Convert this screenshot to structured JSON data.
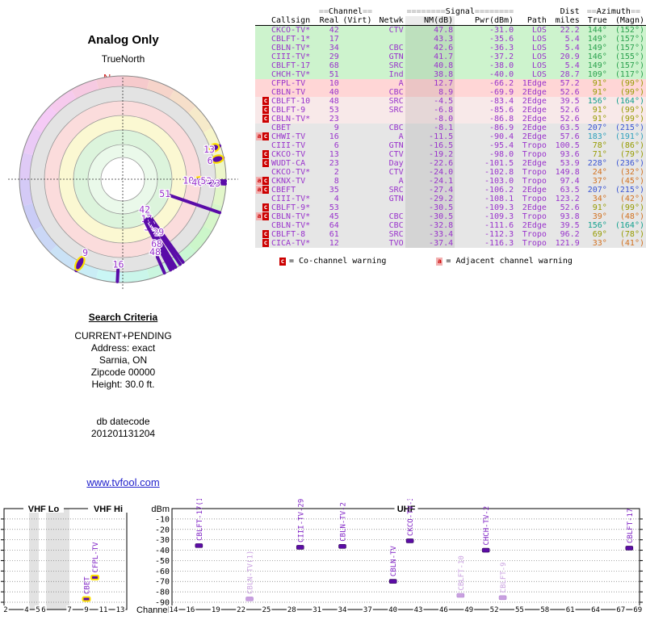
{
  "colors": {
    "purple_text": "#9933cc",
    "spoke_purple": "#5a0ca8",
    "marker_purple": "#5c0ca6",
    "marker_lavender": "#c9a0e0",
    "marker_label_purple": "#7d1fc4",
    "analog_outline_yellow": "#ffe000",
    "warning_red": "#cc0000",
    "warning_pink_bg": "#f2b0b0",
    "link_blue": "#2222cc",
    "north_red": "#cc2222",
    "row_green": "#cdf3cd",
    "row_pink": "#ffd6d6",
    "row_lightpink": "#f8e9e9",
    "row_gray": "#e6e6e6",
    "az_green": "#2aa14d",
    "az_olive": "#969b00",
    "az_teal": "#12a08e",
    "az_cyan": "#2fa0bc",
    "az_blue": "#3a55d4",
    "az_orange": "#d2711f"
  },
  "table": {
    "group_headers": {
      "channel_pre": "==",
      "channel": "Channel",
      "channel_post": "==",
      "signal_pre": "========",
      "signal": "Signal",
      "signal_post": "========",
      "dist": "Dist",
      "azimuth_pre": "==",
      "azimuth": "Azimuth",
      "azimuth_post": "=="
    },
    "columns": [
      "Callsign",
      "Real",
      "(Virt)",
      "Netwk",
      "NM(dB)",
      "Pwr(dBm)",
      "Path",
      "miles",
      "True",
      "(Magn)"
    ],
    "rows": [
      {
        "callsign": "CKCO-TV*",
        "real": 42,
        "virt": "",
        "netwk": "CTV",
        "nm": 47.8,
        "pwr": -31.0,
        "path": "LOS",
        "miles": 22.2,
        "az_true": 144,
        "az_magn": 152,
        "flags": "",
        "band": "green",
        "azc": "green"
      },
      {
        "callsign": "CBLFT-1*",
        "real": 17,
        "virt": "",
        "netwk": "",
        "nm": 43.3,
        "pwr": -35.6,
        "path": "LOS",
        "miles": 5.4,
        "az_true": 149,
        "az_magn": 157,
        "flags": "",
        "band": "green",
        "azc": "green"
      },
      {
        "callsign": "CBLN-TV*",
        "real": 34,
        "virt": "",
        "netwk": "CBC",
        "nm": 42.6,
        "pwr": -36.3,
        "path": "LOS",
        "miles": 5.4,
        "az_true": 149,
        "az_magn": 157,
        "flags": "",
        "band": "green",
        "azc": "green"
      },
      {
        "callsign": "CIII-TV*",
        "real": 29,
        "virt": "",
        "netwk": "GTN",
        "nm": 41.7,
        "pwr": -37.2,
        "path": "LOS",
        "miles": 20.9,
        "az_true": 146,
        "az_magn": 155,
        "flags": "",
        "band": "green",
        "azc": "green"
      },
      {
        "callsign": "CBLFT-17",
        "real": 68,
        "virt": "",
        "netwk": "SRC",
        "nm": 40.8,
        "pwr": -38.0,
        "path": "LOS",
        "miles": 5.4,
        "az_true": 149,
        "az_magn": 157,
        "flags": "",
        "band": "green",
        "azc": "green"
      },
      {
        "callsign": "CHCH-TV*",
        "real": 51,
        "virt": "",
        "netwk": "Ind",
        "nm": 38.8,
        "pwr": -40.0,
        "path": "LOS",
        "miles": 28.7,
        "az_true": 109,
        "az_magn": 117,
        "flags": "",
        "band": "green",
        "azc": "green"
      },
      {
        "callsign": "CFPL-TV",
        "real": 10,
        "virt": "",
        "netwk": "A",
        "nm": 12.7,
        "pwr": -66.2,
        "path": "1Edge",
        "miles": 57.2,
        "az_true": 91,
        "az_magn": 99,
        "flags": "",
        "band": "pink",
        "azc": "olive"
      },
      {
        "callsign": "CBLN-TV",
        "real": 40,
        "virt": "",
        "netwk": "CBC",
        "nm": 8.9,
        "pwr": -69.9,
        "path": "2Edge",
        "miles": 52.6,
        "az_true": 91,
        "az_magn": 99,
        "flags": "",
        "band": "pink",
        "azc": "olive"
      },
      {
        "callsign": "CBLFT-10",
        "real": 48,
        "virt": "",
        "netwk": "SRC",
        "nm": -4.5,
        "pwr": -83.4,
        "path": "2Edge",
        "miles": 39.5,
        "az_true": 156,
        "az_magn": 164,
        "flags": "c",
        "band": "lightpink",
        "azc": "teal"
      },
      {
        "callsign": "CBLFT-9",
        "real": 53,
        "virt": "",
        "netwk": "SRC",
        "nm": -6.8,
        "pwr": -85.6,
        "path": "2Edge",
        "miles": 52.6,
        "az_true": 91,
        "az_magn": 99,
        "flags": "c",
        "band": "lightpink",
        "azc": "olive"
      },
      {
        "callsign": "CBLN-TV*",
        "real": 23,
        "virt": "",
        "netwk": "",
        "nm": -8.0,
        "pwr": -86.8,
        "path": "2Edge",
        "miles": 52.6,
        "az_true": 91,
        "az_magn": 99,
        "flags": "c",
        "band": "lightpink",
        "azc": "olive"
      },
      {
        "callsign": "CBET",
        "real": 9,
        "virt": "",
        "netwk": "CBC",
        "nm": -8.1,
        "pwr": -86.9,
        "path": "2Edge",
        "miles": 63.5,
        "az_true": 207,
        "az_magn": 215,
        "flags": "",
        "band": "gray",
        "azc": "blue"
      },
      {
        "callsign": "CHWI-TV",
        "real": 16,
        "virt": "",
        "netwk": "A",
        "nm": -11.5,
        "pwr": -90.4,
        "path": "2Edge",
        "miles": 57.6,
        "az_true": 183,
        "az_magn": 191,
        "flags": "ac",
        "band": "gray",
        "azc": "cyan"
      },
      {
        "callsign": "CIII-TV",
        "real": 6,
        "virt": "",
        "netwk": "GTN",
        "nm": -16.5,
        "pwr": -95.4,
        "path": "Tropo",
        "miles": 100.5,
        "az_true": 78,
        "az_magn": 86,
        "flags": "",
        "band": "gray",
        "azc": "olive"
      },
      {
        "callsign": "CKCO-TV",
        "real": 13,
        "virt": "",
        "netwk": "CTV",
        "nm": -19.2,
        "pwr": -98.0,
        "path": "Tropo",
        "miles": 93.6,
        "az_true": 71,
        "az_magn": 79,
        "flags": "c",
        "band": "gray",
        "azc": "olive"
      },
      {
        "callsign": "WUDT-CA",
        "real": 23,
        "virt": "",
        "netwk": "Day",
        "nm": -22.6,
        "pwr": -101.5,
        "path": "2Edge",
        "miles": 53.9,
        "az_true": 228,
        "az_magn": 236,
        "flags": "c",
        "band": "gray",
        "azc": "blue"
      },
      {
        "callsign": "CKCO-TV*",
        "real": 2,
        "virt": "",
        "netwk": "CTV",
        "nm": -24.0,
        "pwr": -102.8,
        "path": "Tropo",
        "miles": 149.8,
        "az_true": 24,
        "az_magn": 32,
        "flags": "",
        "band": "gray",
        "azc": "orange"
      },
      {
        "callsign": "CKNX-TV",
        "real": 8,
        "virt": "",
        "netwk": "A",
        "nm": -24.1,
        "pwr": -103.0,
        "path": "Tropo",
        "miles": 97.4,
        "az_true": 37,
        "az_magn": 45,
        "flags": "ac",
        "band": "gray",
        "azc": "orange"
      },
      {
        "callsign": "CBEFT",
        "real": 35,
        "virt": "",
        "netwk": "SRC",
        "nm": -27.4,
        "pwr": -106.2,
        "path": "2Edge",
        "miles": 63.5,
        "az_true": 207,
        "az_magn": 215,
        "flags": "ac",
        "band": "gray",
        "azc": "blue"
      },
      {
        "callsign": "CIII-TV*",
        "real": 4,
        "virt": "",
        "netwk": "GTN",
        "nm": -29.2,
        "pwr": -108.1,
        "path": "Tropo",
        "miles": 123.2,
        "az_true": 34,
        "az_magn": 42,
        "flags": "",
        "band": "gray",
        "azc": "orange"
      },
      {
        "callsign": "CBLFT-9*",
        "real": 53,
        "virt": "",
        "netwk": "",
        "nm": -30.5,
        "pwr": -109.3,
        "path": "2Edge",
        "miles": 52.6,
        "az_true": 91,
        "az_magn": 99,
        "flags": "c",
        "band": "gray",
        "azc": "olive"
      },
      {
        "callsign": "CBLN-TV*",
        "real": 45,
        "virt": "",
        "netwk": "CBC",
        "nm": -30.5,
        "pwr": -109.3,
        "path": "Tropo",
        "miles": 93.8,
        "az_true": 39,
        "az_magn": 48,
        "flags": "ac",
        "band": "gray",
        "azc": "orange"
      },
      {
        "callsign": "CBLN-TV*",
        "real": 64,
        "virt": "",
        "netwk": "CBC",
        "nm": -32.8,
        "pwr": -111.6,
        "path": "2Edge",
        "miles": 39.5,
        "az_true": 156,
        "az_magn": 164,
        "flags": "",
        "band": "gray",
        "azc": "teal"
      },
      {
        "callsign": "CBLFT-8",
        "real": 61,
        "virt": "",
        "netwk": "SRC",
        "nm": -33.4,
        "pwr": -112.3,
        "path": "Tropo",
        "miles": 96.2,
        "az_true": 69,
        "az_magn": 78,
        "flags": "c",
        "band": "gray",
        "azc": "olive"
      },
      {
        "callsign": "CICA-TV*",
        "real": 12,
        "virt": "",
        "netwk": "TVO",
        "nm": -37.4,
        "pwr": -116.3,
        "path": "Tropo",
        "miles": 121.9,
        "az_true": 33,
        "az_magn": 41,
        "flags": "c",
        "band": "gray",
        "azc": "orange"
      }
    ],
    "legend": {
      "c_symbol": "c",
      "c_text": "= Co-channel warning",
      "a_symbol": "a",
      "a_text": "= Adjacent channel warning"
    }
  },
  "search_criteria": {
    "title": "Search Criteria",
    "lines": [
      "CURRENT+PENDING",
      "Address: exact",
      "Sarnia, ON",
      "Zipcode 00000",
      "Height: 30.0 ft."
    ],
    "db_lines": [
      "db datecode",
      "201201131204"
    ]
  },
  "link": "www.tvfool.com",
  "chart_data": [
    {
      "type": "radar",
      "title": "Analog Only",
      "north_label": "TrueNorth",
      "north_marker": "N",
      "rings_outside_in": [
        "hue-wheel",
        "gray",
        "pink",
        "yellow",
        "green",
        "light-green",
        "white-center"
      ],
      "points": [
        {
          "ch": 42,
          "azimuth_true": 144,
          "nm_db": 47.8,
          "analog": false
        },
        {
          "ch": 17,
          "azimuth_true": 149,
          "nm_db": 43.3,
          "analog": false
        },
        {
          "ch": 34,
          "azimuth_true": 149,
          "nm_db": 42.6,
          "analog": false
        },
        {
          "ch": 29,
          "azimuth_true": 146,
          "nm_db": 41.7,
          "analog": false
        },
        {
          "ch": 68,
          "azimuth_true": 149,
          "nm_db": 40.8,
          "analog": false
        },
        {
          "ch": 51,
          "azimuth_true": 109,
          "nm_db": 38.8,
          "analog": false
        },
        {
          "ch": 10,
          "azimuth_true": 91,
          "nm_db": 12.7,
          "analog": true
        },
        {
          "ch": 40,
          "azimuth_true": 91,
          "nm_db": 8.9,
          "analog": false
        },
        {
          "ch": 48,
          "azimuth_true": 156,
          "nm_db": -4.5,
          "analog": false
        },
        {
          "ch": 53,
          "azimuth_true": 91,
          "nm_db": -6.8,
          "analog": false
        },
        {
          "ch": 23,
          "azimuth_true": 91,
          "nm_db": -8.0,
          "analog": false
        },
        {
          "ch": 9,
          "azimuth_true": 207,
          "nm_db": -8.1,
          "analog": true
        },
        {
          "ch": 16,
          "azimuth_true": 183,
          "nm_db": -11.5,
          "analog": false
        },
        {
          "ch": 6,
          "azimuth_true": 78,
          "nm_db": -16.5,
          "analog": true
        },
        {
          "ch": 13,
          "azimuth_true": 71,
          "nm_db": -19.2,
          "analog": true
        }
      ]
    },
    {
      "type": "scatter",
      "ylabel": "dBm",
      "xlabel": "Channel",
      "ylim": [
        0,
        -90
      ],
      "yticks": [
        -10,
        -20,
        -30,
        -40,
        -50,
        -60,
        -70,
        -80,
        -90
      ],
      "band_labels": [
        "VHF Lo",
        "VHF Hi",
        "UHF"
      ],
      "vhf_channel_ticks": [
        2,
        4,
        5,
        6,
        7,
        9,
        11,
        13
      ],
      "uhf_channel_ticks": [
        14,
        16,
        19,
        22,
        25,
        28,
        31,
        34,
        37,
        40,
        43,
        46,
        49,
        52,
        55,
        58,
        61,
        64,
        67,
        69
      ],
      "points": [
        {
          "label": "CBET",
          "ch": 9,
          "dbm": -86.9,
          "panel": "vhf",
          "style": "analog"
        },
        {
          "label": "CFPL-TV",
          "ch": 10,
          "dbm": -66.2,
          "panel": "vhf",
          "style": "analog"
        },
        {
          "label": "CBLFT-17(1)",
          "ch": 17,
          "dbm": -35.6,
          "panel": "uhf",
          "style": "normal"
        },
        {
          "label": "CBLN-TV(1)",
          "ch": 23,
          "dbm": -86.8,
          "panel": "uhf",
          "style": "weak"
        },
        {
          "label": "CIII-TV-29",
          "ch": 29,
          "dbm": -37.2,
          "panel": "uhf",
          "style": "normal"
        },
        {
          "label": "CBLN-TV-2",
          "ch": 34,
          "dbm": -36.3,
          "panel": "uhf",
          "style": "normal"
        },
        {
          "label": "CBLN-TV",
          "ch": 40,
          "dbm": -69.9,
          "panel": "uhf",
          "style": "normal"
        },
        {
          "label": "CKCO-TV-3",
          "ch": 42,
          "dbm": -31.0,
          "panel": "uhf",
          "style": "normal"
        },
        {
          "label": "CBLFT-10",
          "ch": 48,
          "dbm": -83.4,
          "panel": "uhf",
          "style": "weak"
        },
        {
          "label": "CHCH-TV-2",
          "ch": 51,
          "dbm": -40.0,
          "panel": "uhf",
          "style": "normal"
        },
        {
          "label": "CBLFT-9",
          "ch": 53,
          "dbm": -85.6,
          "panel": "uhf",
          "style": "weak"
        },
        {
          "label": "CBLFT-17",
          "ch": 68,
          "dbm": -38.0,
          "panel": "uhf",
          "style": "normal"
        }
      ]
    }
  ]
}
